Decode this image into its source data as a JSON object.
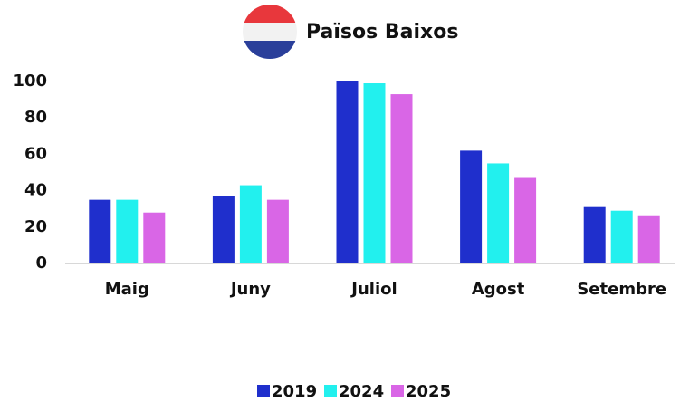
{
  "chart_data": {
    "type": "bar",
    "title": "Països Baixos",
    "categories": [
      "Maig",
      "Juny",
      "Juliol",
      "Agost",
      "Setembre"
    ],
    "series": [
      {
        "name": "2019",
        "color": "#1f2fcc",
        "values": [
          35,
          37,
          100,
          62,
          31
        ]
      },
      {
        "name": "2024",
        "color": "#22f0ee",
        "values": [
          35,
          43,
          99,
          55,
          29
        ]
      },
      {
        "name": "2025",
        "color": "#d966e6",
        "values": [
          28,
          35,
          93,
          47,
          26
        ]
      }
    ],
    "ylim": [
      0,
      100
    ],
    "yticks": [
      0,
      20,
      40,
      60,
      80,
      100
    ],
    "grid": false
  }
}
